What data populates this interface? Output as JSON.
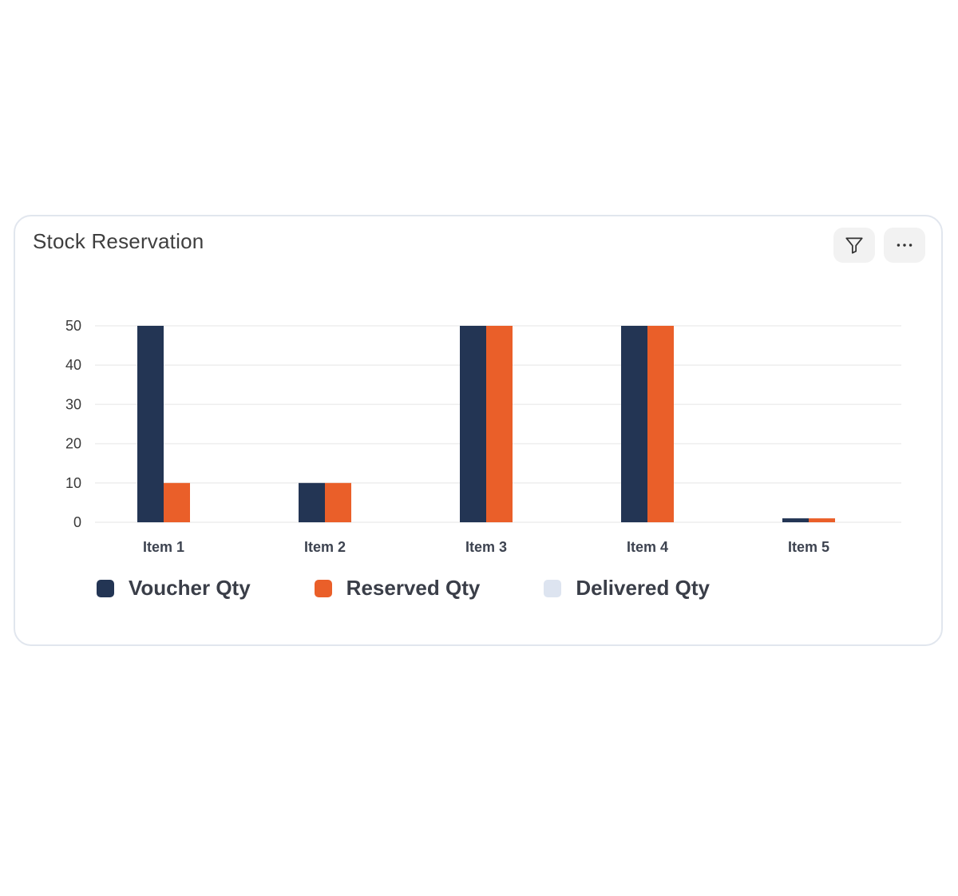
{
  "card": {
    "title": "Stock Reservation"
  },
  "toolbar": {
    "filter_icon": "filter-icon",
    "more_icon": "more-horizontal-icon"
  },
  "chart_data": {
    "type": "bar",
    "categories": [
      "Item 1",
      "Item 2",
      "Item 3",
      "Item 4",
      "Item 5"
    ],
    "series": [
      {
        "name": "Voucher Qty",
        "color": "#233554",
        "values": [
          50,
          10,
          50,
          50,
          1
        ]
      },
      {
        "name": "Reserved Qty",
        "color": "#ea5f29",
        "values": [
          10,
          10,
          50,
          50,
          1
        ]
      },
      {
        "name": "Delivered Qty",
        "color": "#dde4f0",
        "values": [
          0,
          0,
          0,
          0,
          0
        ]
      }
    ],
    "yticks": [
      0,
      10,
      20,
      30,
      40,
      50
    ],
    "ylim": [
      0,
      50
    ],
    "grid": true,
    "legend": "bottom-left"
  }
}
